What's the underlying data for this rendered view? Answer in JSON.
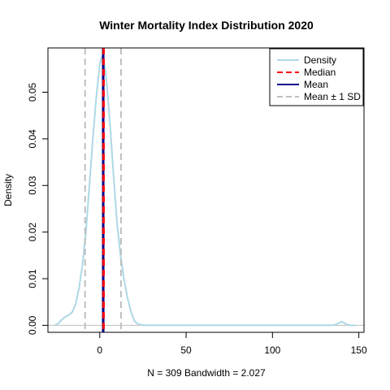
{
  "chart_data": {
    "type": "line",
    "title": "Winter Mortality Index Distribution 2020",
    "xlabel": "N = 309   Bandwidth = 2.027",
    "ylabel": "Density",
    "xlim": [
      -30,
      153
    ],
    "ylim": [
      -0.0015,
      0.0595
    ],
    "x_ticks": [
      0,
      50,
      100,
      150
    ],
    "y_ticks": [
      0.0,
      0.01,
      0.02,
      0.03,
      0.04,
      0.05
    ],
    "y_tick_labels": [
      "0.00",
      "0.01",
      "0.02",
      "0.03",
      "0.04",
      "0.05"
    ],
    "grid": false,
    "legend_position": "top-right",
    "legend": [
      {
        "label": "Density",
        "color": "#add8e6",
        "style": "solid"
      },
      {
        "label": "Median",
        "color": "#ff0000",
        "style": "dashed"
      },
      {
        "label": "Mean",
        "color": "#00008b",
        "style": "solid"
      },
      {
        "label": "Mean ± 1 SD",
        "color": "#bebebe",
        "style": "dashed"
      }
    ],
    "density": {
      "color": "#add8e6",
      "x": [
        -26,
        -24,
        -22,
        -20,
        -18,
        -16,
        -14,
        -12,
        -10,
        -8,
        -6,
        -4,
        -2,
        0,
        1,
        2,
        3,
        4,
        6,
        8,
        10,
        12,
        14,
        16,
        18,
        20,
        22,
        24,
        26,
        30,
        40,
        60,
        80,
        100,
        120,
        134,
        137,
        139,
        140,
        141,
        143,
        145,
        148
      ],
      "y": [
        0.0,
        0.0004,
        0.0012,
        0.0018,
        0.0022,
        0.0028,
        0.0045,
        0.008,
        0.013,
        0.02,
        0.03,
        0.04,
        0.049,
        0.056,
        0.0575,
        0.0572,
        0.0555,
        0.052,
        0.043,
        0.032,
        0.022,
        0.015,
        0.01,
        0.006,
        0.003,
        0.001,
        0.0003,
        0.0001,
        0.0,
        0.0,
        0.0,
        0.0,
        0.0,
        0.0,
        0.0,
        0.0,
        0.0002,
        0.0006,
        0.0008,
        0.0006,
        0.0002,
        0.0,
        0.0
      ]
    },
    "median": {
      "value": 2.2,
      "color": "#ff0000"
    },
    "mean": {
      "value": 2.0,
      "color": "#00008b"
    },
    "mean_minus_sd": {
      "value": -8.5,
      "color": "#bebebe"
    },
    "mean_plus_sd": {
      "value": 12.3,
      "color": "#bebebe"
    },
    "zero_line_color": "#bebebe"
  }
}
